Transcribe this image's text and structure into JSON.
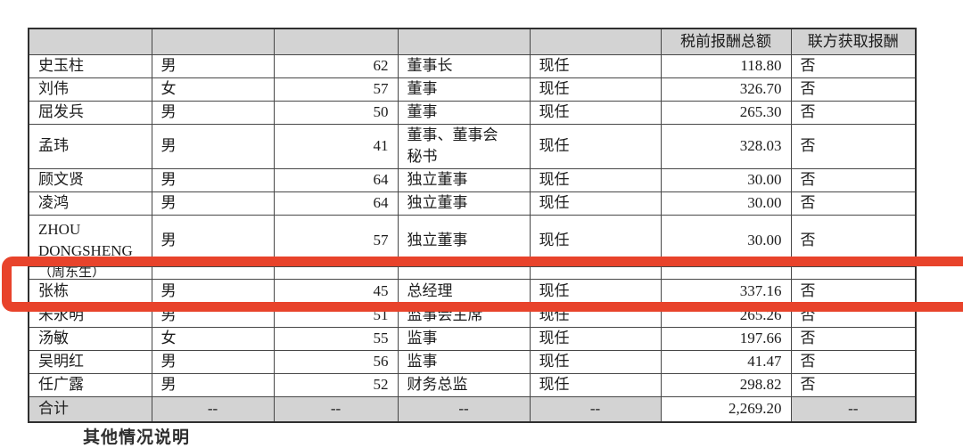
{
  "colors": {
    "highlight_red": "#e8432b",
    "header_bg": "#d3d3d3",
    "border": "#474747"
  },
  "table": {
    "header": [
      "",
      "",
      "",
      "",
      "",
      "税前报酬总额",
      "联方获取报酬"
    ],
    "rows": [
      {
        "name": "史玉柱",
        "gender": "男",
        "age": "62",
        "position": "董事长",
        "status": "现任",
        "compensation": "118.80",
        "related": "否"
      },
      {
        "name": "刘伟",
        "gender": "女",
        "age": "57",
        "position": "董事",
        "status": "现任",
        "compensation": "326.70",
        "related": "否"
      },
      {
        "name": "屈发兵",
        "gender": "男",
        "age": "50",
        "position": "董事",
        "status": "现任",
        "compensation": "265.30",
        "related": "否"
      },
      {
        "name": "孟玮",
        "gender": "男",
        "age": "41",
        "position": "董事、董事会\n秘书",
        "status": "现任",
        "compensation": "328.03",
        "related": "否"
      },
      {
        "name": "顾文贤",
        "gender": "男",
        "age": "64",
        "position": "独立董事",
        "status": "现任",
        "compensation": "30.00",
        "related": "否"
      },
      {
        "name": "凌鸿",
        "gender": "男",
        "age": "64",
        "position": "独立董事",
        "status": "现任",
        "compensation": "30.00",
        "related": "否"
      },
      {
        "name": "ZHOU\nDONGSHENG",
        "gender": "男",
        "age": "57",
        "position": "独立董事",
        "status": "现任",
        "compensation": "30.00",
        "related": "否"
      },
      {
        "name": "（周东生）",
        "gender": "",
        "age": "",
        "position": "",
        "status": "",
        "compensation": "",
        "related": ""
      },
      {
        "name": "张栋",
        "gender": "男",
        "age": "45",
        "position": "总经理",
        "status": "现任",
        "compensation": "337.16",
        "related": "否"
      },
      {
        "name": "宋永明",
        "gender": "男",
        "age": "51",
        "position": "监事会主席",
        "status": "现任",
        "compensation": "265.26",
        "related": "否"
      },
      {
        "name": "汤敏",
        "gender": "女",
        "age": "55",
        "position": "监事",
        "status": "现任",
        "compensation": "197.66",
        "related": "否"
      },
      {
        "name": "吴明红",
        "gender": "男",
        "age": "56",
        "position": "监事",
        "status": "现任",
        "compensation": "41.47",
        "related": "否"
      },
      {
        "name": "任广露",
        "gender": "男",
        "age": "52",
        "position": "财务总监",
        "status": "现任",
        "compensation": "298.82",
        "related": "否"
      }
    ],
    "total_row": {
      "name": "合计",
      "gender": "--",
      "age": "--",
      "position": "--",
      "status": "--",
      "compensation": "2,269.20",
      "related": "--"
    }
  },
  "footer_note": "其他情况说明"
}
